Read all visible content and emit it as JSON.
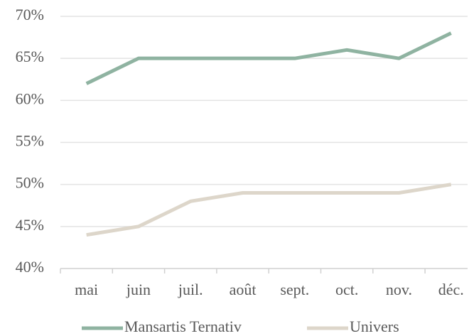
{
  "chart_data": {
    "type": "line",
    "categories": [
      "mai",
      "juin",
      "juil.",
      "août",
      "sept.",
      "oct.",
      "nov.",
      "déc."
    ],
    "series": [
      {
        "name": "Mansartis Ternativ",
        "color": "#8fb3a1",
        "values": [
          62,
          65,
          65,
          65,
          65,
          66,
          65,
          68
        ]
      },
      {
        "name": "Univers",
        "color": "#ddd6ca",
        "values": [
          44,
          45,
          48,
          49,
          49,
          49,
          49,
          50
        ]
      }
    ],
    "ylim": [
      40,
      70
    ],
    "yticks": [
      {
        "value": 40,
        "label": "40%"
      },
      {
        "value": 45,
        "label": "45%"
      },
      {
        "value": 50,
        "label": "50%"
      },
      {
        "value": 55,
        "label": "55%"
      },
      {
        "value": 60,
        "label": "60%"
      },
      {
        "value": 65,
        "label": "65%"
      },
      {
        "value": 70,
        "label": "70%"
      }
    ],
    "grid": true,
    "legend": "bottom"
  }
}
